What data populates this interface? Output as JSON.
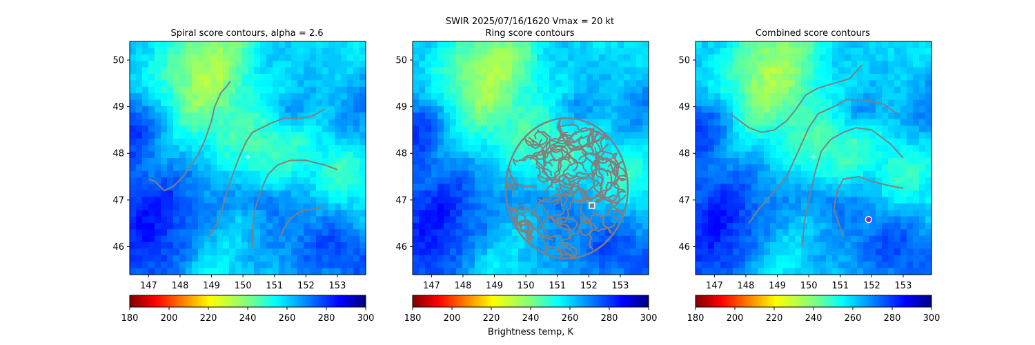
{
  "suptitle_line1": "SWIR  2025/07/16/1620    Vmax = 20 kt",
  "colorbar_label": "Brightness temp, K",
  "colorbar": {
    "ticks": [
      180,
      200,
      220,
      240,
      260,
      280,
      300
    ],
    "range": [
      180,
      300
    ],
    "colormap": "jet_r"
  },
  "colors": {
    "contour": "#808080",
    "center_marker": "#ffffff",
    "ring_marker": "#ffffff",
    "combined_marker": "#7b2fd6"
  },
  "chart_data": [
    {
      "type": "heatmap",
      "title": "Spiral score contours, alpha =  2.6",
      "xlabel": "",
      "ylabel": "",
      "xlim": [
        146.4,
        153.9
      ],
      "ylim": [
        45.4,
        50.4
      ],
      "xticks": [
        147,
        148,
        149,
        150,
        151,
        152,
        153
      ],
      "yticks": [
        46,
        47,
        48,
        49,
        50
      ],
      "center_marker": {
        "lon": 150.15,
        "lat": 47.92,
        "shape": "plus"
      },
      "contours": [
        [
          [
            149.6,
            49.55
          ],
          [
            149.5,
            49.45
          ],
          [
            149.3,
            49.3
          ],
          [
            149.1,
            49.0
          ],
          [
            149.0,
            48.7
          ],
          [
            148.8,
            48.3
          ],
          [
            148.6,
            48.0
          ],
          [
            148.4,
            47.8
          ],
          [
            148.1,
            47.5
          ],
          [
            147.8,
            47.3
          ],
          [
            147.5,
            47.2
          ],
          [
            147.2,
            47.4
          ],
          [
            147.0,
            47.45
          ]
        ],
        [
          [
            152.6,
            48.95
          ],
          [
            152.2,
            48.8
          ],
          [
            151.8,
            48.75
          ],
          [
            151.3,
            48.75
          ],
          [
            150.9,
            48.65
          ],
          [
            150.6,
            48.55
          ],
          [
            150.3,
            48.45
          ],
          [
            150.1,
            48.25
          ],
          [
            149.9,
            47.95
          ],
          [
            149.7,
            47.6
          ],
          [
            149.5,
            47.2
          ],
          [
            149.3,
            46.7
          ],
          [
            149.1,
            46.4
          ],
          [
            148.9,
            46.2
          ]
        ],
        [
          [
            153.0,
            47.65
          ],
          [
            152.6,
            47.75
          ],
          [
            152.0,
            47.85
          ],
          [
            151.5,
            47.85
          ],
          [
            151.1,
            47.75
          ],
          [
            150.8,
            47.55
          ],
          [
            150.6,
            47.25
          ],
          [
            150.4,
            46.85
          ],
          [
            150.3,
            46.4
          ],
          [
            150.3,
            45.95
          ]
        ],
        [
          [
            152.6,
            46.85
          ],
          [
            152.2,
            46.8
          ],
          [
            151.8,
            46.75
          ],
          [
            151.5,
            46.6
          ],
          [
            151.3,
            46.4
          ],
          [
            151.2,
            46.2
          ]
        ]
      ]
    },
    {
      "type": "heatmap",
      "title": "Ring score contours",
      "xlabel": "",
      "ylabel": "",
      "xlim": [
        146.4,
        153.9
      ],
      "ylim": [
        45.4,
        50.4
      ],
      "xticks": [
        147,
        148,
        149,
        150,
        151,
        152,
        153
      ],
      "yticks": [
        46,
        47,
        48,
        49,
        50
      ],
      "ring_marker": {
        "lon": 152.1,
        "lat": 46.88,
        "shape": "square"
      },
      "ring_region": {
        "lon_range": [
          149.3,
          153.3
        ],
        "lat_range": [
          45.7,
          48.8
        ]
      }
    },
    {
      "type": "heatmap",
      "title": "Combined score contours",
      "xlabel": "",
      "ylabel": "",
      "xlim": [
        146.4,
        153.9
      ],
      "ylim": [
        45.4,
        50.4
      ],
      "xticks": [
        147,
        148,
        149,
        150,
        151,
        152,
        153
      ],
      "yticks": [
        46,
        47,
        48,
        49,
        50
      ],
      "center_marker": {
        "lon": 150.15,
        "lat": 47.92,
        "shape": "plus"
      },
      "combined_marker": {
        "lon": 151.9,
        "lat": 46.58,
        "shape": "circle"
      },
      "contours": [
        [
          [
            153.0,
            47.9
          ],
          [
            152.6,
            48.2
          ],
          [
            152.0,
            48.5
          ],
          [
            151.5,
            48.55
          ],
          [
            151.1,
            48.45
          ],
          [
            150.7,
            48.3
          ],
          [
            150.4,
            48.05
          ],
          [
            150.2,
            47.6
          ],
          [
            150.0,
            47.0
          ],
          [
            149.85,
            46.5
          ],
          [
            149.8,
            46.0
          ]
        ],
        [
          [
            152.8,
            48.85
          ],
          [
            152.4,
            49.05
          ],
          [
            151.8,
            49.15
          ],
          [
            151.2,
            49.15
          ],
          [
            150.8,
            49.0
          ],
          [
            150.3,
            48.85
          ],
          [
            150.0,
            48.55
          ],
          [
            149.7,
            48.1
          ],
          [
            149.3,
            47.5
          ],
          [
            148.8,
            47.1
          ],
          [
            148.4,
            46.8
          ],
          [
            148.1,
            46.5
          ]
        ],
        [
          [
            151.7,
            49.9
          ],
          [
            151.3,
            49.6
          ],
          [
            150.8,
            49.5
          ],
          [
            150.3,
            49.4
          ],
          [
            149.9,
            49.25
          ],
          [
            149.6,
            48.95
          ],
          [
            149.3,
            48.7
          ],
          [
            148.9,
            48.5
          ],
          [
            148.5,
            48.45
          ],
          [
            148.1,
            48.55
          ],
          [
            147.8,
            48.7
          ],
          [
            147.5,
            48.85
          ]
        ],
        [
          [
            153.0,
            47.25
          ],
          [
            152.6,
            47.3
          ],
          [
            152.0,
            47.4
          ],
          [
            151.6,
            47.5
          ],
          [
            151.1,
            47.45
          ],
          [
            150.9,
            47.2
          ],
          [
            150.8,
            46.8
          ],
          [
            150.95,
            46.5
          ],
          [
            151.1,
            46.2
          ]
        ]
      ]
    }
  ]
}
